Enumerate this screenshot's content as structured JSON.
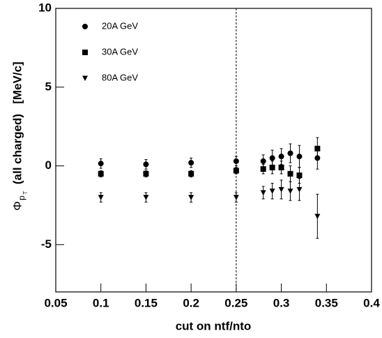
{
  "chart_data": {
    "type": "errorbar-scatter",
    "xlabel": "cut on  ntf/nto",
    "ylabel_parts": [
      "Φ",
      "p",
      "T",
      "(all charged)   [MeV/c]"
    ],
    "x": [
      0.1,
      0.15,
      0.2,
      0.25,
      0.28,
      0.29,
      0.3,
      0.31,
      0.32,
      0.34
    ],
    "series": [
      {
        "name": "20A GeV",
        "color": "#000000",
        "marker": "circle",
        "values": [
          0.15,
          0.1,
          0.2,
          0.3,
          0.3,
          0.5,
          0.6,
          0.8,
          0.6,
          0.5
        ],
        "errors": [
          0.3,
          0.3,
          0.3,
          0.3,
          0.4,
          0.5,
          0.5,
          0.6,
          0.7,
          0.7
        ]
      },
      {
        "name": "30A GeV",
        "color": "#000000",
        "marker": "square",
        "values": [
          -0.5,
          -0.5,
          -0.5,
          -0.3,
          -0.2,
          -0.1,
          -0.1,
          -0.5,
          -0.6,
          1.1
        ],
        "errors": [
          0.2,
          0.2,
          0.2,
          0.2,
          0.3,
          0.4,
          0.4,
          0.5,
          0.5,
          0.7
        ]
      },
      {
        "name": "80A GeV",
        "color": "#000000",
        "marker": "triangle-down",
        "values": [
          -2.0,
          -2.0,
          -2.0,
          -2.0,
          -1.7,
          -1.6,
          -1.5,
          -1.6,
          -1.5,
          -3.2
        ],
        "errors": [
          0.3,
          0.3,
          0.3,
          0.3,
          0.4,
          0.5,
          0.6,
          0.6,
          0.7,
          1.4
        ]
      }
    ],
    "vline": 0.25,
    "xlim": [
      0.05,
      0.4
    ],
    "xticks": [
      0.05,
      0.1,
      0.15,
      0.2,
      0.25,
      0.3,
      0.35,
      0.4
    ],
    "ylim": [
      -8,
      10
    ],
    "yticks": [
      -5,
      0,
      5,
      10
    ],
    "grid": false,
    "legend": "upper-left"
  }
}
